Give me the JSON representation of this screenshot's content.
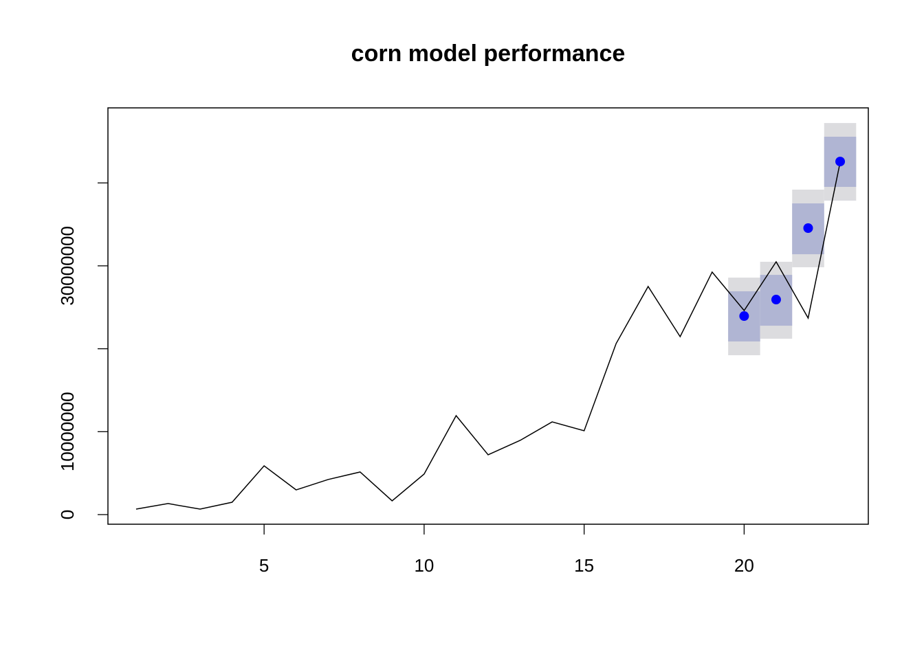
{
  "chart_data": {
    "type": "line",
    "title": "corn model performance",
    "xlim": [
      0.12,
      23.88
    ],
    "xticks": [
      5,
      10,
      15,
      20
    ],
    "ylim": [
      -1160000,
      49050000
    ],
    "yticks": [
      0,
      10000000,
      {
        "value": 20000000,
        "label": null
      },
      30000000,
      {
        "value": 40000000,
        "label": null
      }
    ],
    "series": [
      {
        "color": "#000000",
        "x": [
          1,
          2,
          3,
          4,
          5,
          6,
          7,
          8,
          9,
          10,
          11,
          12,
          13,
          14,
          15,
          16,
          17,
          18,
          19,
          20,
          21,
          22,
          23
        ],
        "values": [
          660000,
          1330000,
          660000,
          1490000,
          5880000,
          2980000,
          4230000,
          5140000,
          1660000,
          4890000,
          11930000,
          7210000,
          8950000,
          11180000,
          10110000,
          20630000,
          27510000,
          21460000,
          29250000,
          24610000,
          30490000,
          23700000,
          42500000
        ]
      },
      {
        "color": "#0000ff",
        "band_color_80": "#b0b5d3",
        "band_color_95": "#dcdcdf",
        "x": [
          20,
          21,
          22,
          23
        ],
        "values": [
          23940000,
          25930000,
          34550000,
          42580000
        ],
        "lower_80": [
          20880000,
          22780000,
          31400000,
          39520000
        ],
        "upper_80": [
          26930000,
          28910000,
          37530000,
          45570000
        ],
        "lower_95": [
          19220000,
          21210000,
          29830000,
          37860000
        ],
        "upper_95": [
          28580000,
          30490000,
          39190000,
          47220000
        ]
      }
    ]
  }
}
